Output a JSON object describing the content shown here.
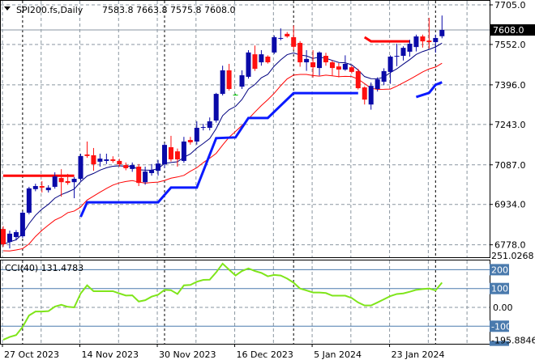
{
  "header": {
    "symbol_label": "SPI200.fs,Daily",
    "ohlc_label": "7583.8 7663.8 7575.8 7608.0"
  },
  "indicator": {
    "label": "CCI(40) 131.4783"
  },
  "colors": {
    "bull": "#0a0aa8",
    "bear": "#ff1010",
    "doji": "#00c000",
    "ma_fast": "#000080",
    "ma_slow": "#ff0000",
    "support": "#0a1aff",
    "resistance": "#ff0000",
    "cci": "#7fe51a",
    "level_box": "#4a7aad"
  },
  "chart_data": [
    {
      "type": "candlestick",
      "title": "SPI200.fs,Daily",
      "ylim": [
        6760,
        7716
      ],
      "price_ticks": [
        "7705.0",
        "7552.0",
        "7396.0",
        "7243.0",
        "7087.0",
        "6934.0",
        "6778.0"
      ],
      "current_price": "7608.0",
      "x_ticks": [
        {
          "bar": 0,
          "label": "27 Oct 2023"
        },
        {
          "bar": 12,
          "label": "14 Nov 2023"
        },
        {
          "bar": 24,
          "label": "30 Nov 2023"
        },
        {
          "bar": 36,
          "label": "16 Dec 2023"
        },
        {
          "bar": 48,
          "label": "5 Jan 2024"
        },
        {
          "bar": 60,
          "label": "23 Jan 2024"
        }
      ],
      "separators": [
        3,
        25,
        45,
        67
      ],
      "grid": true,
      "ohlc": [
        [
          6839,
          6850,
          6770,
          6780
        ],
        [
          6789,
          6833,
          6764,
          6821
        ],
        [
          6808,
          6835,
          6795,
          6827
        ],
        [
          6811,
          6908,
          6805,
          6902
        ],
        [
          6902,
          7002,
          6896,
          6996
        ],
        [
          6993,
          7014,
          6985,
          7005
        ],
        [
          7005,
          7024,
          6980,
          6999
        ],
        [
          6989,
          7008,
          6980,
          6999
        ],
        [
          7002,
          7058,
          6995,
          7042
        ],
        [
          7036,
          7070,
          6964,
          7020
        ],
        [
          7024,
          7052,
          7010,
          7017
        ],
        [
          7020,
          7040,
          6958,
          7033
        ],
        [
          7033,
          7130,
          7025,
          7121
        ],
        [
          7127,
          7177,
          7114,
          7121
        ],
        [
          7124,
          7152,
          7064,
          7089
        ],
        [
          7099,
          7130,
          7080,
          7111
        ],
        [
          7102,
          7130,
          7090,
          7108
        ],
        [
          7108,
          7120,
          7095,
          7102
        ],
        [
          7102,
          7110,
          7080,
          7089
        ],
        [
          7086,
          7096,
          7066,
          7074
        ],
        [
          7071,
          7096,
          7060,
          7086
        ],
        [
          7080,
          7090,
          7005,
          7017
        ],
        [
          7020,
          7080,
          7010,
          7061
        ],
        [
          7055,
          7090,
          7045,
          7067
        ],
        [
          7064,
          7106,
          7045,
          7092
        ],
        [
          7089,
          7170,
          7075,
          7164
        ],
        [
          7155,
          7199,
          7100,
          7108
        ],
        [
          7139,
          7150,
          7080,
          7108
        ],
        [
          7102,
          7195,
          7095,
          7177
        ],
        [
          7183,
          7195,
          7165,
          7174
        ],
        [
          7177,
          7255,
          7165,
          7230
        ],
        [
          7230,
          7245,
          7220,
          7233
        ],
        [
          7230,
          7270,
          7220,
          7255
        ],
        [
          7258,
          7365,
          7250,
          7361
        ],
        [
          7361,
          7470,
          7355,
          7452
        ],
        [
          7452,
          7477,
          7374,
          7380
        ],
        [
          7358,
          7362,
          7355,
          7358
        ],
        [
          7389,
          7452,
          7380,
          7433
        ],
        [
          7427,
          7530,
          7420,
          7521
        ],
        [
          7514,
          7548,
          7450,
          7458
        ],
        [
          7483,
          7530,
          7470,
          7514
        ],
        [
          7505,
          7510,
          7478,
          7483
        ],
        [
          7521,
          7587,
          7515,
          7580
        ],
        [
          7574,
          7614,
          7568,
          7577
        ],
        [
          7593,
          7600,
          7578,
          7583
        ],
        [
          7580,
          7625,
          7530,
          7543
        ],
        [
          7558,
          7565,
          7466,
          7483
        ],
        [
          7483,
          7530,
          7450,
          7496
        ],
        [
          7483,
          7530,
          7424,
          7464
        ],
        [
          7461,
          7525,
          7432,
          7521
        ],
        [
          7508,
          7520,
          7470,
          7483
        ],
        [
          7483,
          7490,
          7430,
          7461
        ],
        [
          7467,
          7480,
          7425,
          7455
        ],
        [
          7455,
          7510,
          7450,
          7477
        ],
        [
          7464,
          7470,
          7440,
          7446
        ],
        [
          7449,
          7458,
          7378,
          7383
        ],
        [
          7386,
          7390,
          7320,
          7339
        ],
        [
          7320,
          7405,
          7300,
          7392
        ],
        [
          7380,
          7425,
          7370,
          7417
        ],
        [
          7408,
          7460,
          7395,
          7449
        ],
        [
          7446,
          7510,
          7400,
          7505
        ],
        [
          7505,
          7555,
          7468,
          7508
        ],
        [
          7508,
          7545,
          7490,
          7539
        ],
        [
          7524,
          7570,
          7505,
          7555
        ],
        [
          7542,
          7590,
          7525,
          7583
        ],
        [
          7583,
          7590,
          7540,
          7564
        ],
        [
          7567,
          7655,
          7536,
          7561
        ],
        [
          7561,
          7590,
          7520,
          7577
        ],
        [
          7583.8,
          7663.8,
          7575.8,
          7608.0
        ]
      ],
      "support_line": [
        [
          12,
          6886
        ],
        [
          13,
          6942
        ],
        [
          24,
          6942
        ],
        [
          26,
          6999
        ],
        [
          30,
          6999
        ],
        [
          33,
          7190
        ],
        [
          36,
          7193
        ],
        [
          38,
          7268
        ],
        [
          41,
          7268
        ],
        [
          45,
          7364
        ],
        [
          55,
          7364
        ],
        null,
        [
          64,
          7349
        ],
        [
          66,
          7365
        ],
        [
          67,
          7396
        ],
        [
          68,
          7406
        ]
      ],
      "resistance_lines": [
        [
          [
            0,
            7045
          ],
          [
            11,
            7045
          ]
        ],
        [
          [
            56,
            7580
          ],
          [
            57,
            7564
          ],
          [
            63,
            7564
          ]
        ]
      ]
    },
    {
      "type": "line",
      "title": "CCI(40)",
      "ylim": [
        -195.8846,
        251.0268
      ],
      "y_ticks": [
        "200",
        "100",
        "0.00",
        "-100"
      ],
      "max_label": "251.0268",
      "min_label": "-195.8846",
      "values": [
        -172,
        -157,
        -147,
        -104,
        -43,
        -22,
        -22,
        -20,
        4,
        14,
        3,
        0,
        74,
        117,
        86,
        86,
        86,
        86,
        74,
        63,
        64,
        31,
        38,
        57,
        67,
        93,
        91,
        71,
        117,
        119,
        136,
        146,
        147,
        186,
        232,
        200,
        169,
        193,
        207,
        193,
        183,
        165,
        172,
        169,
        153,
        131,
        100,
        90,
        79,
        79,
        76,
        62,
        62,
        62,
        50,
        26,
        10,
        10,
        26,
        43,
        60,
        71,
        74,
        83,
        93,
        97,
        100,
        90,
        131.4783
      ]
    }
  ]
}
